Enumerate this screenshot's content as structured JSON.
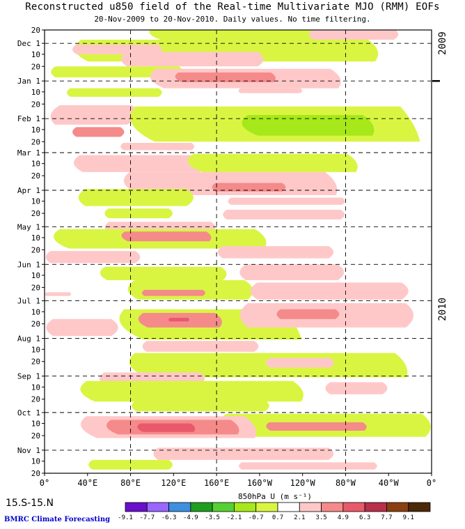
{
  "header": {
    "title": "Reconstructed u850 field of the Real-time Multivariate MJO (RMM) EOFs",
    "subtitle": "20-Nov-2009 to 20-Nov-2010. Daily values. No time filtering."
  },
  "footer": {
    "region": "15.S-15.N",
    "credit": "BMRC Climate Forecasting"
  },
  "chart_data": {
    "type": "heatmap",
    "title": "Reconstructed u850 field of the Real-time Multivariate MJO (RMM) EOFs",
    "subtitle": "20-Nov-2009 to 20-Nov-2010. Daily values. No time filtering.",
    "xlabel": "850hPa U (m s⁻¹)",
    "x_range_deg_east": [
      0,
      360
    ],
    "xticks": [
      {
        "lon": 0,
        "label": "0°"
      },
      {
        "lon": 40,
        "label": "40°E"
      },
      {
        "lon": 80,
        "label": "80°E"
      },
      {
        "lon": 120,
        "label": "120°E"
      },
      {
        "lon": 160,
        "label": "160°E"
      },
      {
        "lon": 200,
        "label": "160°W"
      },
      {
        "lon": 240,
        "label": "120°W"
      },
      {
        "lon": 280,
        "label": "80°W"
      },
      {
        "lon": 320,
        "label": "40°W"
      },
      {
        "lon": 360,
        "label": "0°"
      }
    ],
    "dashed_lon_lines": [
      80,
      160,
      280
    ],
    "y_range_days": [
      0,
      365
    ],
    "yticks": [
      {
        "day": 0,
        "label": "20"
      },
      {
        "day": 11,
        "label": "Dec 1"
      },
      {
        "day": 20,
        "label": "10"
      },
      {
        "day": 30,
        "label": "20"
      },
      {
        "day": 42,
        "label": "Jan 1"
      },
      {
        "day": 51,
        "label": "10"
      },
      {
        "day": 61,
        "label": "20"
      },
      {
        "day": 73,
        "label": "Feb 1"
      },
      {
        "day": 82,
        "label": "10"
      },
      {
        "day": 92,
        "label": "20"
      },
      {
        "day": 101,
        "label": "Mar 1"
      },
      {
        "day": 110,
        "label": "10"
      },
      {
        "day": 120,
        "label": "20"
      },
      {
        "day": 132,
        "label": "Apr 1"
      },
      {
        "day": 141,
        "label": "10"
      },
      {
        "day": 151,
        "label": "20"
      },
      {
        "day": 162,
        "label": "May 1"
      },
      {
        "day": 171,
        "label": "10"
      },
      {
        "day": 181,
        "label": "20"
      },
      {
        "day": 193,
        "label": "Jun 1"
      },
      {
        "day": 202,
        "label": "10"
      },
      {
        "day": 212,
        "label": "20"
      },
      {
        "day": 223,
        "label": "Jul 1"
      },
      {
        "day": 232,
        "label": "10"
      },
      {
        "day": 242,
        "label": "20"
      },
      {
        "day": 254,
        "label": "Aug 1"
      },
      {
        "day": 263,
        "label": "10"
      },
      {
        "day": 273,
        "label": "20"
      },
      {
        "day": 285,
        "label": "Sep 1"
      },
      {
        "day": 294,
        "label": "10"
      },
      {
        "day": 304,
        "label": "20"
      },
      {
        "day": 315,
        "label": "Oct 1"
      },
      {
        "day": 324,
        "label": "10"
      },
      {
        "day": 334,
        "label": "20"
      },
      {
        "day": 346,
        "label": "Nov 1"
      },
      {
        "day": 355,
        "label": "10"
      },
      {
        "day": 365,
        "label": "20"
      }
    ],
    "dashed_day_lines": [
      11,
      42,
      73,
      101,
      132,
      162,
      193,
      223,
      254,
      285,
      315,
      346
    ],
    "year_labels": [
      {
        "text": "2009",
        "day": 11
      },
      {
        "text": "2010",
        "day": 230
      }
    ],
    "year_boundary_day": 42,
    "colorbar": {
      "levels": [
        "-9.1",
        "-7.7",
        "-6.3",
        "-4.9",
        "-3.5",
        "-2.1",
        "-0.7",
        "0.7",
        "2.1",
        "3.5",
        "4.9",
        "6.3",
        "7.7",
        "9.1"
      ],
      "colors": [
        "#6a0fcc",
        "#9966ff",
        "#3d8fe0",
        "#1e9e1e",
        "#55d033",
        "#a6e81a",
        "#d9f542",
        "#ffffff",
        "#ffc8c8",
        "#f58a8a",
        "#e85a6a",
        "#b8304a",
        "#8a4010",
        "#4a2808"
      ]
    },
    "contour_bands": [
      {
        "cat": "westerly_weak",
        "lon": [
          95,
          255
        ],
        "day": [
          -2,
          8
        ],
        "slope": 0.4
      },
      {
        "cat": "easterly_weak",
        "lon": [
          245,
          330
        ],
        "day": [
          -1,
          8
        ],
        "slope": 0
      },
      {
        "cat": "westerly_weak",
        "lon": [
          25,
          310
        ],
        "day": [
          8,
          26
        ],
        "slope": 0.2
      },
      {
        "cat": "easterly_weak",
        "lon": [
          25,
          110
        ],
        "day": [
          12,
          20
        ],
        "slope": 0
      },
      {
        "cat": "easterly_weak",
        "lon": [
          70,
          205
        ],
        "day": [
          18,
          30
        ],
        "slope": 0
      },
      {
        "cat": "westerly_weak",
        "lon": [
          5,
          130
        ],
        "day": [
          30,
          39
        ],
        "slope": 0
      },
      {
        "cat": "easterly_weak",
        "lon": [
          95,
          275
        ],
        "day": [
          32,
          48
        ],
        "slope": 0.25
      },
      {
        "cat": "easterly_mod",
        "lon": [
          120,
          215
        ],
        "day": [
          35,
          43
        ],
        "slope": 0.2
      },
      {
        "cat": "easterly_weak",
        "lon": [
          180,
          240
        ],
        "day": [
          48,
          52
        ],
        "slope": 0
      },
      {
        "cat": "westerly_weak",
        "lon": [
          20,
          110
        ],
        "day": [
          48,
          55
        ],
        "slope": 0
      },
      {
        "cat": "easterly_weak",
        "lon": [
          5,
          90
        ],
        "day": [
          62,
          78
        ],
        "slope": -0.15
      },
      {
        "cat": "easterly_mod",
        "lon": [
          25,
          75
        ],
        "day": [
          80,
          88
        ],
        "slope": 0
      },
      {
        "cat": "westerly_weak",
        "lon": [
          75,
          340
        ],
        "day": [
          63,
          92
        ],
        "slope": 0.35
      },
      {
        "cat": "westerly_mod",
        "lon": [
          180,
          305
        ],
        "day": [
          70,
          87
        ],
        "slope": 0.3
      },
      {
        "cat": "easterly_weak",
        "lon": [
          70,
          140
        ],
        "day": [
          93,
          99
        ],
        "slope": 0
      },
      {
        "cat": "easterly_weak",
        "lon": [
          25,
          150
        ],
        "day": [
          103,
          117
        ],
        "slope": 0.1
      },
      {
        "cat": "westerly_weak",
        "lon": [
          130,
          290
        ],
        "day": [
          102,
          117
        ],
        "slope": 0.3
      },
      {
        "cat": "easterly_weak",
        "lon": [
          70,
          270
        ],
        "day": [
          117,
          136
        ],
        "slope": 0.3
      },
      {
        "cat": "easterly_mod",
        "lon": [
          155,
          225
        ],
        "day": [
          126,
          133
        ],
        "slope": 0
      },
      {
        "cat": "westerly_weak",
        "lon": [
          30,
          140
        ],
        "day": [
          131,
          145
        ],
        "slope": 0
      },
      {
        "cat": "easterly_weak",
        "lon": [
          170,
          280
        ],
        "day": [
          138,
          144
        ],
        "slope": 0
      },
      {
        "cat": "westerly_weak",
        "lon": [
          55,
          120
        ],
        "day": [
          147,
          155
        ],
        "slope": 0
      },
      {
        "cat": "easterly_weak",
        "lon": [
          165,
          280
        ],
        "day": [
          148,
          156
        ],
        "slope": 0
      },
      {
        "cat": "easterly_weak",
        "lon": [
          55,
          160
        ],
        "day": [
          158,
          167
        ],
        "slope": 0
      },
      {
        "cat": "westerly_weak",
        "lon": [
          5,
          205
        ],
        "day": [
          164,
          180
        ],
        "slope": 0.3
      },
      {
        "cat": "easterly_mod",
        "lon": [
          70,
          155
        ],
        "day": [
          166,
          174
        ],
        "slope": 0.2
      },
      {
        "cat": "easterly_weak",
        "lon": [
          0,
          90
        ],
        "day": [
          182,
          192
        ],
        "slope": 0
      },
      {
        "cat": "easterly_weak",
        "lon": [
          160,
          270
        ],
        "day": [
          178,
          188
        ],
        "slope": 0
      },
      {
        "cat": "westerly_weak",
        "lon": [
          50,
          170
        ],
        "day": [
          195,
          206
        ],
        "slope": 0.1
      },
      {
        "cat": "easterly_weak",
        "lon": [
          180,
          280
        ],
        "day": [
          193,
          206
        ],
        "slope": 0
      },
      {
        "cat": "westerly_weak",
        "lon": [
          75,
          195
        ],
        "day": [
          206,
          222
        ],
        "slope": 0.1
      },
      {
        "cat": "easterly_mod",
        "lon": [
          90,
          150
        ],
        "day": [
          214,
          219
        ],
        "slope": 0
      },
      {
        "cat": "easterly_weak",
        "lon": [
          190,
          340
        ],
        "day": [
          208,
          222
        ],
        "slope": 0
      },
      {
        "cat": "easterly_weak",
        "lon": [
          0,
          25
        ],
        "day": [
          216,
          219
        ],
        "slope": 0
      },
      {
        "cat": "westerly_weak",
        "lon": [
          65,
          230
        ],
        "day": [
          230,
          255
        ],
        "slope": 0.4
      },
      {
        "cat": "easterly_mod",
        "lon": [
          85,
          165
        ],
        "day": [
          233,
          245
        ],
        "slope": 0.2
      },
      {
        "cat": "easterly_strong",
        "lon": [
          115,
          135
        ],
        "day": [
          237,
          240
        ],
        "slope": 0
      },
      {
        "cat": "easterly_weak",
        "lon": [
          0,
          70
        ],
        "day": [
          238,
          252
        ],
        "slope": 0
      },
      {
        "cat": "easterly_weak",
        "lon": [
          180,
          345
        ],
        "day": [
          225,
          245
        ],
        "slope": 0
      },
      {
        "cat": "easterly_mod",
        "lon": [
          215,
          275
        ],
        "day": [
          230,
          238
        ],
        "slope": 0
      },
      {
        "cat": "easterly_weak",
        "lon": [
          90,
          200
        ],
        "day": [
          256,
          265
        ],
        "slope": 0
      },
      {
        "cat": "westerly_weak",
        "lon": [
          75,
          335
        ],
        "day": [
          266,
          286
        ],
        "slope": 0.3
      },
      {
        "cat": "easterly_weak",
        "lon": [
          205,
          270
        ],
        "day": [
          270,
          278
        ],
        "slope": 0
      },
      {
        "cat": "easterly_weak",
        "lon": [
          50,
          150
        ],
        "day": [
          282,
          292
        ],
        "slope": 0
      },
      {
        "cat": "westerly_weak",
        "lon": [
          30,
          240
        ],
        "day": [
          289,
          306
        ],
        "slope": 0.25
      },
      {
        "cat": "easterly_weak",
        "lon": [
          260,
          320
        ],
        "day": [
          290,
          300
        ],
        "slope": 0
      },
      {
        "cat": "westerly_weak",
        "lon": [
          80,
          210
        ],
        "day": [
          305,
          314
        ],
        "slope": 0
      },
      {
        "cat": "westerly_weak",
        "lon": [
          160,
          360
        ],
        "day": [
          316,
          335
        ],
        "slope": 0.1
      },
      {
        "cat": "easterly_mod",
        "lon": [
          205,
          300
        ],
        "day": [
          323,
          330
        ],
        "slope": 0.1
      },
      {
        "cat": "easterly_weak",
        "lon": [
          30,
          195
        ],
        "day": [
          318,
          336
        ],
        "slope": 0.3
      },
      {
        "cat": "easterly_mod",
        "lon": [
          55,
          180
        ],
        "day": [
          321,
          333
        ],
        "slope": 0.3
      },
      {
        "cat": "easterly_strong",
        "lon": [
          85,
          140
        ],
        "day": [
          324,
          331
        ],
        "slope": 0.2
      },
      {
        "cat": "easterly_weak",
        "lon": [
          100,
          270
        ],
        "day": [
          344,
          354
        ],
        "slope": 0
      },
      {
        "cat": "westerly_weak",
        "lon": [
          40,
          120
        ],
        "day": [
          354,
          362
        ],
        "slope": 0
      },
      {
        "cat": "easterly_weak",
        "lon": [
          180,
          310
        ],
        "day": [
          356,
          362
        ],
        "slope": 0
      }
    ]
  }
}
